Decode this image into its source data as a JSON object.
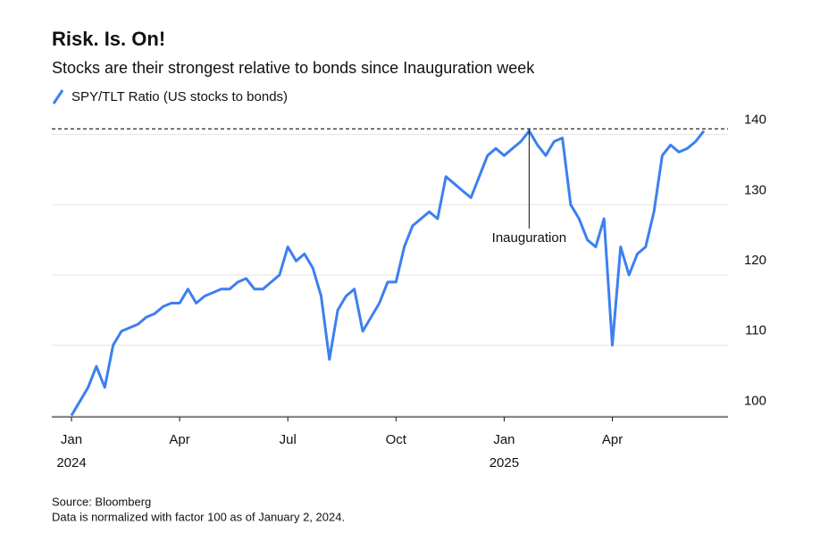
{
  "chart_data": {
    "type": "line",
    "title": "Risk. Is. On!",
    "subtitle": "Stocks are their strongest relative to bonds since Inauguration week",
    "source": "Source: Bloomberg",
    "note": "Data is normalized with factor 100 as of January 2, 2024.",
    "categories": [
      "Jan 2024",
      null,
      null,
      null,
      null,
      null,
      null,
      null,
      null,
      null,
      null,
      null,
      null,
      "Apr",
      null,
      null,
      null,
      null,
      null,
      null,
      null,
      null,
      null,
      null,
      null,
      null,
      "Jul",
      null,
      null,
      null,
      null,
      null,
      null,
      null,
      null,
      null,
      null,
      null,
      null,
      "Oct",
      null,
      null,
      null,
      null,
      null,
      null,
      null,
      null,
      null,
      null,
      null,
      null,
      "Jan 2025",
      null,
      null,
      null,
      null,
      null,
      null,
      null,
      null,
      null,
      null,
      null,
      null,
      "Apr",
      null,
      null,
      null,
      null,
      null,
      null,
      null,
      null,
      null,
      null,
      null
    ],
    "series": [
      {
        "name": "SPY/TLT Ratio (US stocks to bonds)",
        "color": "#3d7ff0",
        "values": [
          100,
          102,
          104,
          107,
          104,
          110,
          112,
          112.5,
          113,
          114,
          114.5,
          115.5,
          116,
          116,
          118,
          116,
          117,
          117.5,
          118,
          118,
          119,
          119.5,
          118,
          118,
          119,
          120,
          124,
          122,
          123,
          121,
          117,
          108,
          115,
          117,
          118,
          112,
          114,
          116,
          119,
          119,
          124,
          127,
          128,
          129,
          128,
          134,
          133,
          132,
          131,
          134,
          137,
          138,
          137,
          138,
          139,
          140.5,
          138.5,
          137,
          139,
          139.5,
          130,
          128,
          125,
          124,
          128,
          110,
          124,
          120,
          123,
          124,
          129,
          137,
          138.5,
          137.5,
          138,
          139,
          140.5
        ]
      }
    ],
    "ylim": [
      99.8,
      141.6
    ],
    "yticks": [
      100,
      110,
      120,
      130,
      140
    ],
    "grid": true,
    "reference_line": 140.8,
    "annotation": {
      "text": "Inauguration",
      "index": 55
    }
  }
}
